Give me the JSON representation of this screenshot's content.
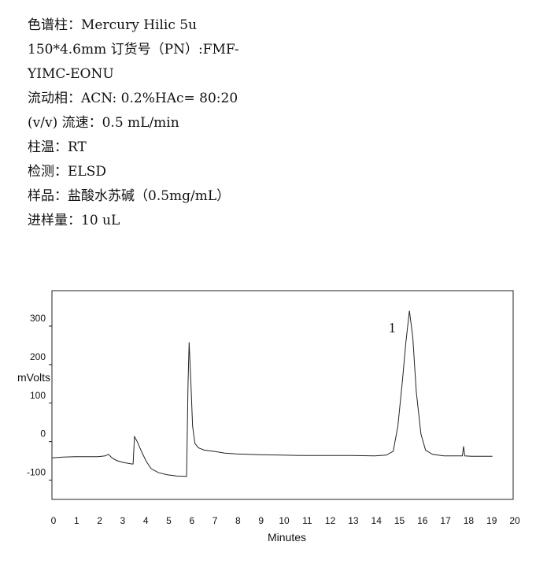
{
  "conditions": [
    "色谱柱：Mercury Hilic 5u",
    "150*4.6mm 订货号（PN）:FMF-",
    "YIMC-EONU",
    "流动相：ACN: 0.2%HAc= 80:20",
    "(v/v) 流速：0.5 mL/min",
    "柱温：RT",
    "检测：ELSD",
    "样品：盐酸水苏碱（0.5mg/mL）",
    "进样量：10 uL"
  ],
  "chart_data": {
    "type": "line",
    "title": "",
    "xlabel": "Minutes",
    "ylabel": "mVolts",
    "xlim": [
      0,
      20
    ],
    "ylim": [
      -150,
      392
    ],
    "xticks": [
      "0",
      "1",
      "2",
      "3",
      "4",
      "5",
      "6",
      "7",
      "8",
      "9",
      "10",
      "11",
      "12",
      "13",
      "14",
      "15",
      "16",
      "17",
      "18",
      "19",
      "20"
    ],
    "yticks": [
      "-100",
      "0",
      "100",
      "200",
      "300"
    ],
    "grid": false,
    "line_color": "#222222",
    "annotations": [
      {
        "text": "1",
        "x": 14.6,
        "y": 300
      }
    ],
    "series": [
      {
        "x": [
          0,
          0.5,
          1,
          1.5,
          2,
          2.3,
          2.45,
          2.6,
          2.8,
          3.1,
          3.45,
          3.52,
          3.58,
          3.7,
          3.9,
          4.1,
          4.3,
          4.6,
          5.0,
          5.4,
          5.8,
          5.84,
          5.9,
          5.95,
          6.02,
          6.1,
          6.2,
          6.35,
          6.6,
          7,
          7.5,
          8,
          9,
          10,
          11,
          12,
          13,
          14,
          14.5,
          14.8,
          15.0,
          15.2,
          15.35,
          15.5,
          15.65,
          15.8,
          16.0,
          16.2,
          16.5,
          17,
          17.8,
          17.85,
          17.9,
          18.2,
          19.1
        ],
        "y": [
          -42,
          -40,
          -39,
          -39,
          -39,
          -37,
          -33,
          -42,
          -49,
          -54,
          -58,
          -58,
          13,
          0,
          -28,
          -52,
          -70,
          -80,
          -86,
          -89,
          -90,
          -90,
          150,
          258,
          160,
          40,
          -5,
          -16,
          -22,
          -25,
          -30,
          -32,
          -34,
          -35,
          -36,
          -36,
          -36,
          -37,
          -35,
          -25,
          40,
          160,
          260,
          340,
          270,
          130,
          20,
          -22,
          -33,
          -37,
          -37,
          -12,
          -37,
          -38,
          -38
        ]
      }
    ]
  }
}
